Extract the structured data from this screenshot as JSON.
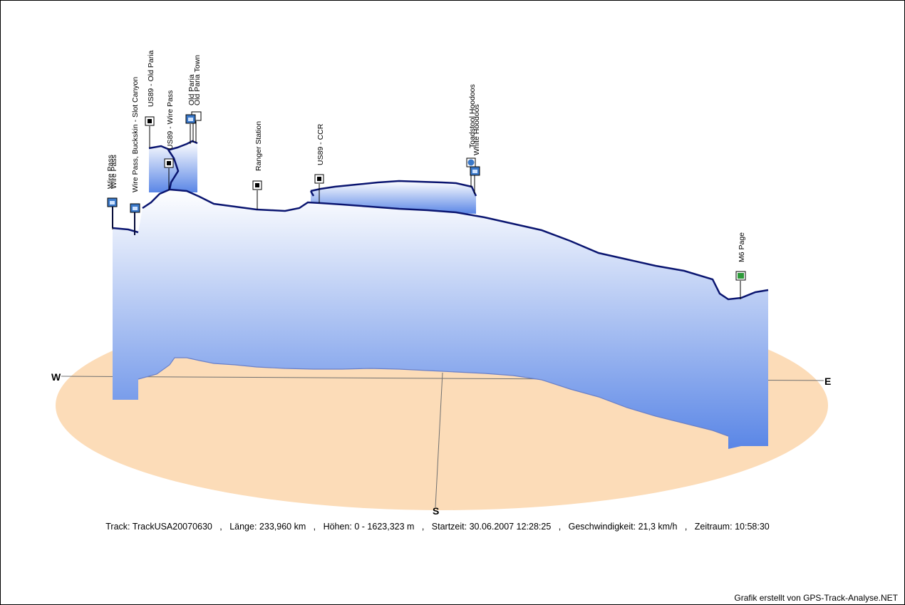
{
  "compass": {
    "w": "W",
    "e": "E",
    "s": "S"
  },
  "stats": {
    "track_label": "Track:",
    "track": "TrackUSA20070630",
    "length_label": "Länge:",
    "length": "233,960 km",
    "heights_label": "Höhen:",
    "heights": "0 - 1623,323 m",
    "start_label": "Startzeit:",
    "start": "30.06.2007 12:28:25",
    "speed_label": "Geschwindigkeit:",
    "speed": "21,3 km/h",
    "duration_label": "Zeitraum:",
    "duration": "10:58:30"
  },
  "credit": "Grafik erstellt von GPS-Track-Analyse.NET",
  "colors": {
    "ellipse": "#fcdcb8",
    "track": "#0a1570",
    "curtain_top": "#ffffff",
    "curtain_bottom": "#5a86e6",
    "waypoint_blue": "#3a78c8",
    "waypoint_green": "#2e9a3a"
  },
  "chart_data": {
    "type": "3d-track-elevation-profile",
    "elevation_range_m": [
      0,
      1623.323
    ],
    "waypoints": [
      {
        "label": "Wire Pass",
        "icon": "camera-icon"
      },
      {
        "label": "Wire Pass",
        "icon": "camera-icon"
      },
      {
        "label": "Wire Pass, Buckskin - Slot Canyon",
        "icon": "camera-icon"
      },
      {
        "label": "US89 - Old Paria",
        "icon": "square-icon"
      },
      {
        "label": "US89 - Wire Pass",
        "icon": "square-icon"
      },
      {
        "label": "Old Paria",
        "icon": "camera-icon"
      },
      {
        "label": "Old Paria Town",
        "icon": "camera-icon"
      },
      {
        "label": "Ranger Station",
        "icon": "square-icon"
      },
      {
        "label": "US89 - CCR",
        "icon": "square-icon"
      },
      {
        "label": "Toadstool Hoodoos",
        "icon": "globe-icon"
      },
      {
        "label": "White Hoodoos",
        "icon": "camera-icon"
      },
      {
        "label": "M6 Page",
        "icon": "flag-icon"
      }
    ]
  }
}
